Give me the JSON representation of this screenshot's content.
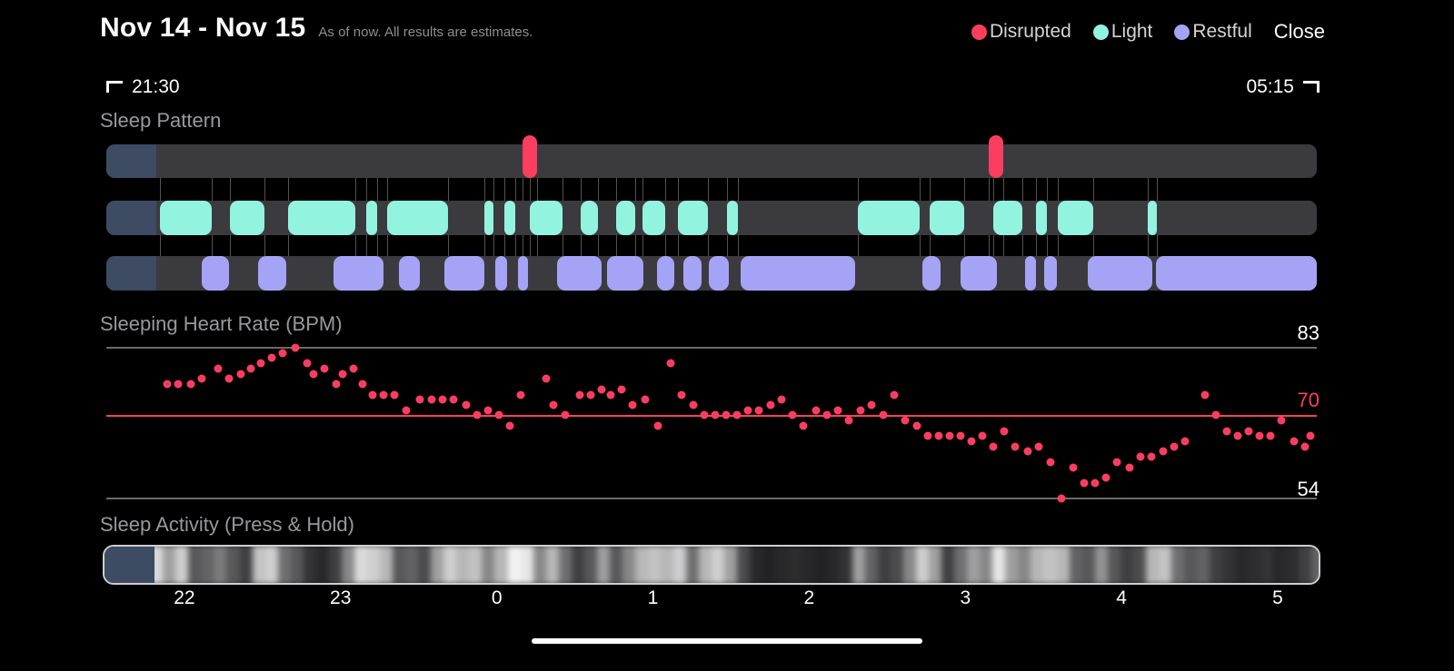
{
  "header": {
    "title": "Nov 14 - Nov 15",
    "subtitle": "As of now. All results are estimates.",
    "close_label": "Close",
    "legend": [
      {
        "label": "Disrupted",
        "color": "#fb3e5f"
      },
      {
        "label": "Light",
        "color": "#92f3de"
      },
      {
        "label": "Restful",
        "color": "#a5a3f6"
      }
    ]
  },
  "time_range": {
    "start": "21:30",
    "end": "05:15"
  },
  "sections": {
    "sleep_pattern_title": "Sleep Pattern",
    "heart_rate_title": "Sleeping Heart Rate (BPM)",
    "activity_title": "Sleep Activity (Press & Hold)"
  },
  "x_axis": {
    "ticks": [
      {
        "label": "22",
        "f": 0.0645
      },
      {
        "label": "23",
        "f": 0.1935
      },
      {
        "label": "0",
        "f": 0.3226
      },
      {
        "label": "1",
        "f": 0.4516
      },
      {
        "label": "2",
        "f": 0.5806
      },
      {
        "label": "3",
        "f": 0.7097
      },
      {
        "label": "4",
        "f": 0.8387
      },
      {
        "label": "5",
        "f": 0.9677
      }
    ]
  },
  "chart_data": [
    {
      "type": "timeline",
      "title": "Sleep Pattern",
      "x_range": [
        "21:30",
        "05:15"
      ],
      "lead_in_end": 0.041,
      "colors": {
        "disrupted": "#fb3e5f",
        "light": "#92f3de",
        "restful": "#a5a3f6",
        "track": "#3b3b3f",
        "lead_in": "#3d4b63"
      },
      "disrupted": [
        [
          0.344,
          0.356
        ],
        [
          0.729,
          0.741
        ]
      ],
      "light": [
        [
          0.044,
          0.087
        ],
        [
          0.102,
          0.131
        ],
        [
          0.15,
          0.206
        ],
        [
          0.215,
          0.224
        ],
        [
          0.232,
          0.282
        ],
        [
          0.312,
          0.32
        ],
        [
          0.329,
          0.338
        ],
        [
          0.35,
          0.377
        ],
        [
          0.392,
          0.406
        ],
        [
          0.421,
          0.437
        ],
        [
          0.443,
          0.462
        ],
        [
          0.472,
          0.497
        ],
        [
          0.513,
          0.522
        ],
        [
          0.621,
          0.672
        ],
        [
          0.68,
          0.709
        ],
        [
          0.733,
          0.757
        ],
        [
          0.768,
          0.777
        ],
        [
          0.786,
          0.815
        ],
        [
          0.86,
          0.868
        ]
      ],
      "restful": [
        [
          0.079,
          0.101
        ],
        [
          0.125,
          0.149
        ],
        [
          0.188,
          0.229
        ],
        [
          0.242,
          0.259
        ],
        [
          0.279,
          0.312
        ],
        [
          0.321,
          0.331
        ],
        [
          0.34,
          0.348
        ],
        [
          0.372,
          0.409
        ],
        [
          0.414,
          0.444
        ],
        [
          0.455,
          0.469
        ],
        [
          0.477,
          0.492
        ],
        [
          0.498,
          0.514
        ],
        [
          0.524,
          0.619
        ],
        [
          0.674,
          0.689
        ],
        [
          0.706,
          0.736
        ],
        [
          0.759,
          0.768
        ],
        [
          0.775,
          0.785
        ],
        [
          0.811,
          0.864
        ],
        [
          0.867,
          1.0
        ]
      ]
    },
    {
      "type": "scatter",
      "title": "Sleeping Heart Rate (BPM)",
      "ylim": [
        54,
        83
      ],
      "ylabels": [
        "83",
        "70",
        "54"
      ],
      "reference_line": 70,
      "color": "#fb3e5f",
      "points": [
        [
          0.05,
          76
        ],
        [
          0.059,
          76
        ],
        [
          0.07,
          76
        ],
        [
          0.079,
          77
        ],
        [
          0.092,
          79
        ],
        [
          0.101,
          77
        ],
        [
          0.111,
          78
        ],
        [
          0.119,
          79
        ],
        [
          0.128,
          80
        ],
        [
          0.137,
          81
        ],
        [
          0.146,
          82
        ],
        [
          0.156,
          83
        ],
        [
          0.166,
          80
        ],
        [
          0.171,
          78
        ],
        [
          0.18,
          79
        ],
        [
          0.19,
          76
        ],
        [
          0.195,
          78
        ],
        [
          0.204,
          79
        ],
        [
          0.212,
          76
        ],
        [
          0.22,
          74
        ],
        [
          0.229,
          74
        ],
        [
          0.238,
          74
        ],
        [
          0.248,
          71
        ],
        [
          0.259,
          73
        ],
        [
          0.269,
          73
        ],
        [
          0.278,
          73
        ],
        [
          0.287,
          73
        ],
        [
          0.297,
          72
        ],
        [
          0.306,
          70
        ],
        [
          0.315,
          71
        ],
        [
          0.324,
          70
        ],
        [
          0.333,
          68
        ],
        [
          0.342,
          74
        ],
        [
          0.363,
          77
        ],
        [
          0.369,
          72
        ],
        [
          0.379,
          70
        ],
        [
          0.391,
          74
        ],
        [
          0.4,
          74
        ],
        [
          0.409,
          75
        ],
        [
          0.417,
          74
        ],
        [
          0.426,
          75
        ],
        [
          0.435,
          72
        ],
        [
          0.445,
          73
        ],
        [
          0.456,
          68
        ],
        [
          0.466,
          80
        ],
        [
          0.475,
          74
        ],
        [
          0.485,
          72
        ],
        [
          0.494,
          70
        ],
        [
          0.503,
          70
        ],
        [
          0.512,
          70
        ],
        [
          0.521,
          70
        ],
        [
          0.53,
          71
        ],
        [
          0.539,
          71
        ],
        [
          0.549,
          72
        ],
        [
          0.558,
          73
        ],
        [
          0.567,
          70
        ],
        [
          0.576,
          68
        ],
        [
          0.586,
          71
        ],
        [
          0.595,
          70
        ],
        [
          0.604,
          71
        ],
        [
          0.613,
          69
        ],
        [
          0.623,
          71
        ],
        [
          0.632,
          72
        ],
        [
          0.642,
          70
        ],
        [
          0.651,
          74
        ],
        [
          0.66,
          69
        ],
        [
          0.67,
          68
        ],
        [
          0.679,
          66
        ],
        [
          0.688,
          66
        ],
        [
          0.697,
          66
        ],
        [
          0.706,
          66
        ],
        [
          0.715,
          65
        ],
        [
          0.724,
          66
        ],
        [
          0.733,
          64
        ],
        [
          0.742,
          67
        ],
        [
          0.751,
          64
        ],
        [
          0.761,
          63
        ],
        [
          0.77,
          64
        ],
        [
          0.78,
          61
        ],
        [
          0.789,
          54
        ],
        [
          0.799,
          60
        ],
        [
          0.808,
          57
        ],
        [
          0.817,
          57
        ],
        [
          0.826,
          58
        ],
        [
          0.835,
          61
        ],
        [
          0.845,
          60
        ],
        [
          0.854,
          62
        ],
        [
          0.863,
          62
        ],
        [
          0.873,
          63
        ],
        [
          0.882,
          64
        ],
        [
          0.891,
          65
        ],
        [
          0.908,
          74
        ],
        [
          0.917,
          70
        ],
        [
          0.926,
          67
        ],
        [
          0.935,
          66
        ],
        [
          0.944,
          67
        ],
        [
          0.953,
          66
        ],
        [
          0.962,
          66
        ],
        [
          0.971,
          69
        ],
        [
          0.981,
          65
        ],
        [
          0.99,
          64
        ],
        [
          0.995,
          66
        ]
      ]
    },
    {
      "type": "heatmap",
      "title": "Sleep Activity (Press & Hold)",
      "values": [
        0,
        0.05,
        0.1,
        0.45,
        0.85,
        0.6,
        0.8,
        0.3,
        0.35,
        0.45,
        0.3,
        0.2,
        0.75,
        0.8,
        0.4,
        0.3,
        0.15,
        0.1,
        0.2,
        0.5,
        0.85,
        0.8,
        0.7,
        0.3,
        0.35,
        0.25,
        0.6,
        0.8,
        0.7,
        0.75,
        0.5,
        0.7,
        0.95,
        0.9,
        0.5,
        0.7,
        0.4,
        0.2,
        0.3,
        0.6,
        0.3,
        0.5,
        0.7,
        0.75,
        0.7,
        0.8,
        0.4,
        0.7,
        0.8,
        0.6,
        0.25,
        0.1,
        0.08,
        0.1,
        0.12,
        0.1,
        0.08,
        0.1,
        0.15,
        0.6,
        0.35,
        0.2,
        0.25,
        0.5,
        0.8,
        0.6,
        0.2,
        0.4,
        0.6,
        0.5,
        0.9,
        0.6,
        0.5,
        0.7,
        0.75,
        0.7,
        0.35,
        0.3,
        0.55,
        0.3,
        0.2,
        0.25,
        0.7,
        0.75,
        0.4,
        0.3,
        0.35,
        0.2,
        0.15,
        0.1,
        0.12,
        0.15,
        0.1,
        0.12,
        0.2,
        0.35
      ]
    }
  ]
}
